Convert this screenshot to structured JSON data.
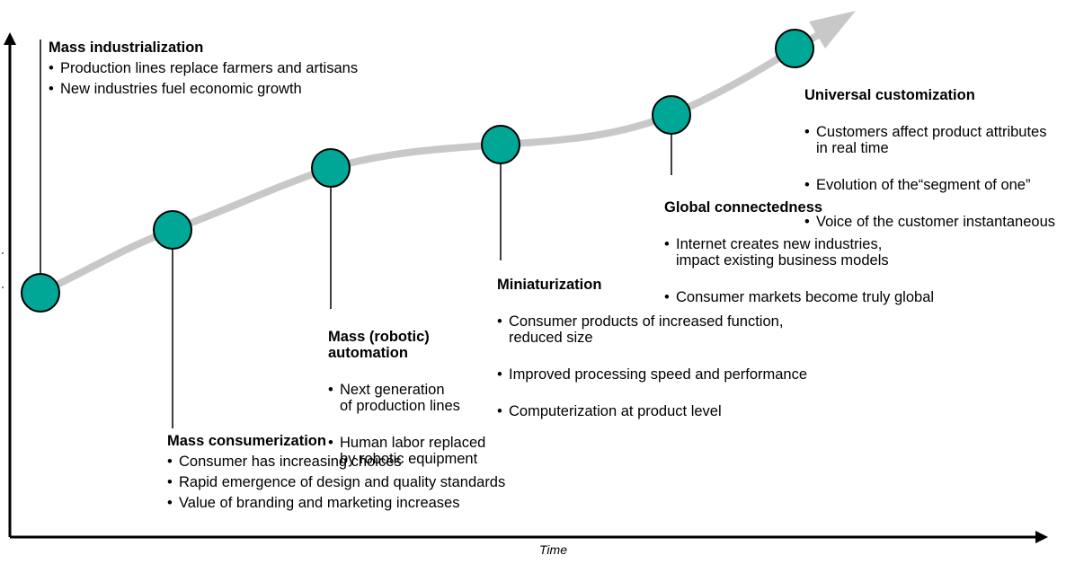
{
  "axis": {
    "x_label": "Time"
  },
  "colors": {
    "node": "#00a797",
    "trend": "#c8c8c8",
    "axis": "#000000"
  },
  "stages": [
    {
      "title": "Mass industrialization",
      "bullets": [
        "Production lines replace farmers and artisans",
        "New industries fuel economic growth"
      ]
    },
    {
      "title": "Mass consumerization",
      "bullets": [
        "Consumer has increasing choices",
        "Rapid emergence of design and quality standards",
        "Value of branding and marketing increases"
      ]
    },
    {
      "title": "Mass (robotic)\nautomation",
      "bullets": [
        "Next generation\nof production lines",
        "Human labor replaced\nby robotic equipment"
      ]
    },
    {
      "title": "Miniaturization",
      "bullets": [
        "Consumer products of increased function,\nreduced size",
        "Improved processing speed and performance",
        "Computerization at product level"
      ]
    },
    {
      "title": "Global connectedness",
      "bullets": [
        "Internet creates new industries,\nimpact existing business models",
        "Consumer markets become truly global"
      ]
    },
    {
      "title": "Universal customization",
      "bullets": [
        "Customers affect product attributes\nin real time",
        "Evolution of the“segment of one”",
        "Voice of the customer instantaneous"
      ]
    }
  ]
}
